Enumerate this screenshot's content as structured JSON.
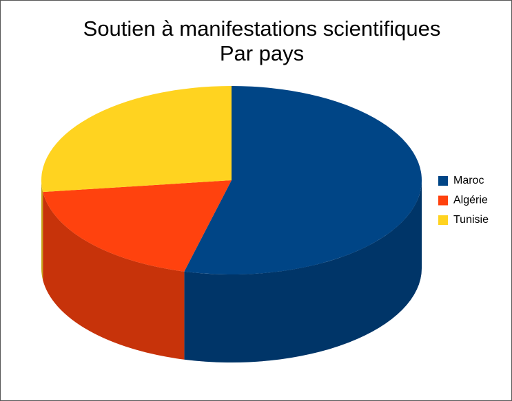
{
  "chart_data": {
    "type": "pie3d",
    "title": "Soutien à manifestations scientifiques",
    "subtitle": "Par pays",
    "series": [
      {
        "name": "Maroc",
        "color": "#004586",
        "value": 54
      },
      {
        "name": "Algérie",
        "color": "#ff420e",
        "value": 19
      },
      {
        "name": "Tunisie",
        "color": "#ffd320",
        "value": 27
      }
    ],
    "legend": "right"
  }
}
